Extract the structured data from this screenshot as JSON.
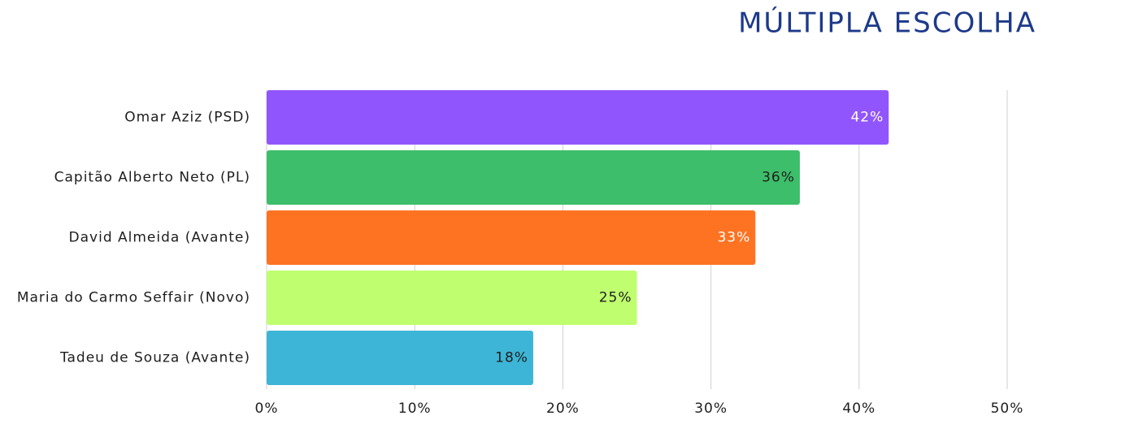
{
  "chart_data": {
    "type": "bar",
    "orientation": "horizontal",
    "title": "MÚLTIPLA ESCOLHA",
    "categories": [
      "Omar Aziz (PSD)",
      "Capitão Alberto Neto (PL)",
      "David Almeida (Avante)",
      "Maria do Carmo Seffair (Novo)",
      "Tadeu de Souza (Avante)"
    ],
    "values": [
      42,
      36,
      33,
      25,
      18
    ],
    "value_labels": [
      "42%",
      "36%",
      "33%",
      "25%",
      "18%"
    ],
    "colors": [
      "#9155fd",
      "#3dbe6a",
      "#fd7322",
      "#bffe6f",
      "#3db5d6"
    ],
    "value_label_colors": [
      "#ffffff",
      "#1e1e1e",
      "#ffffff",
      "#1e1e1e",
      "#1e1e1e"
    ],
    "xlim": [
      0,
      50
    ],
    "xticks": [
      {
        "value": 0,
        "label": "0%"
      },
      {
        "value": 10,
        "label": "10%"
      },
      {
        "value": 20,
        "label": "20%"
      },
      {
        "value": 30,
        "label": "30%"
      },
      {
        "value": 40,
        "label": "40%"
      },
      {
        "value": 50,
        "label": "50%"
      }
    ],
    "grid": true
  }
}
